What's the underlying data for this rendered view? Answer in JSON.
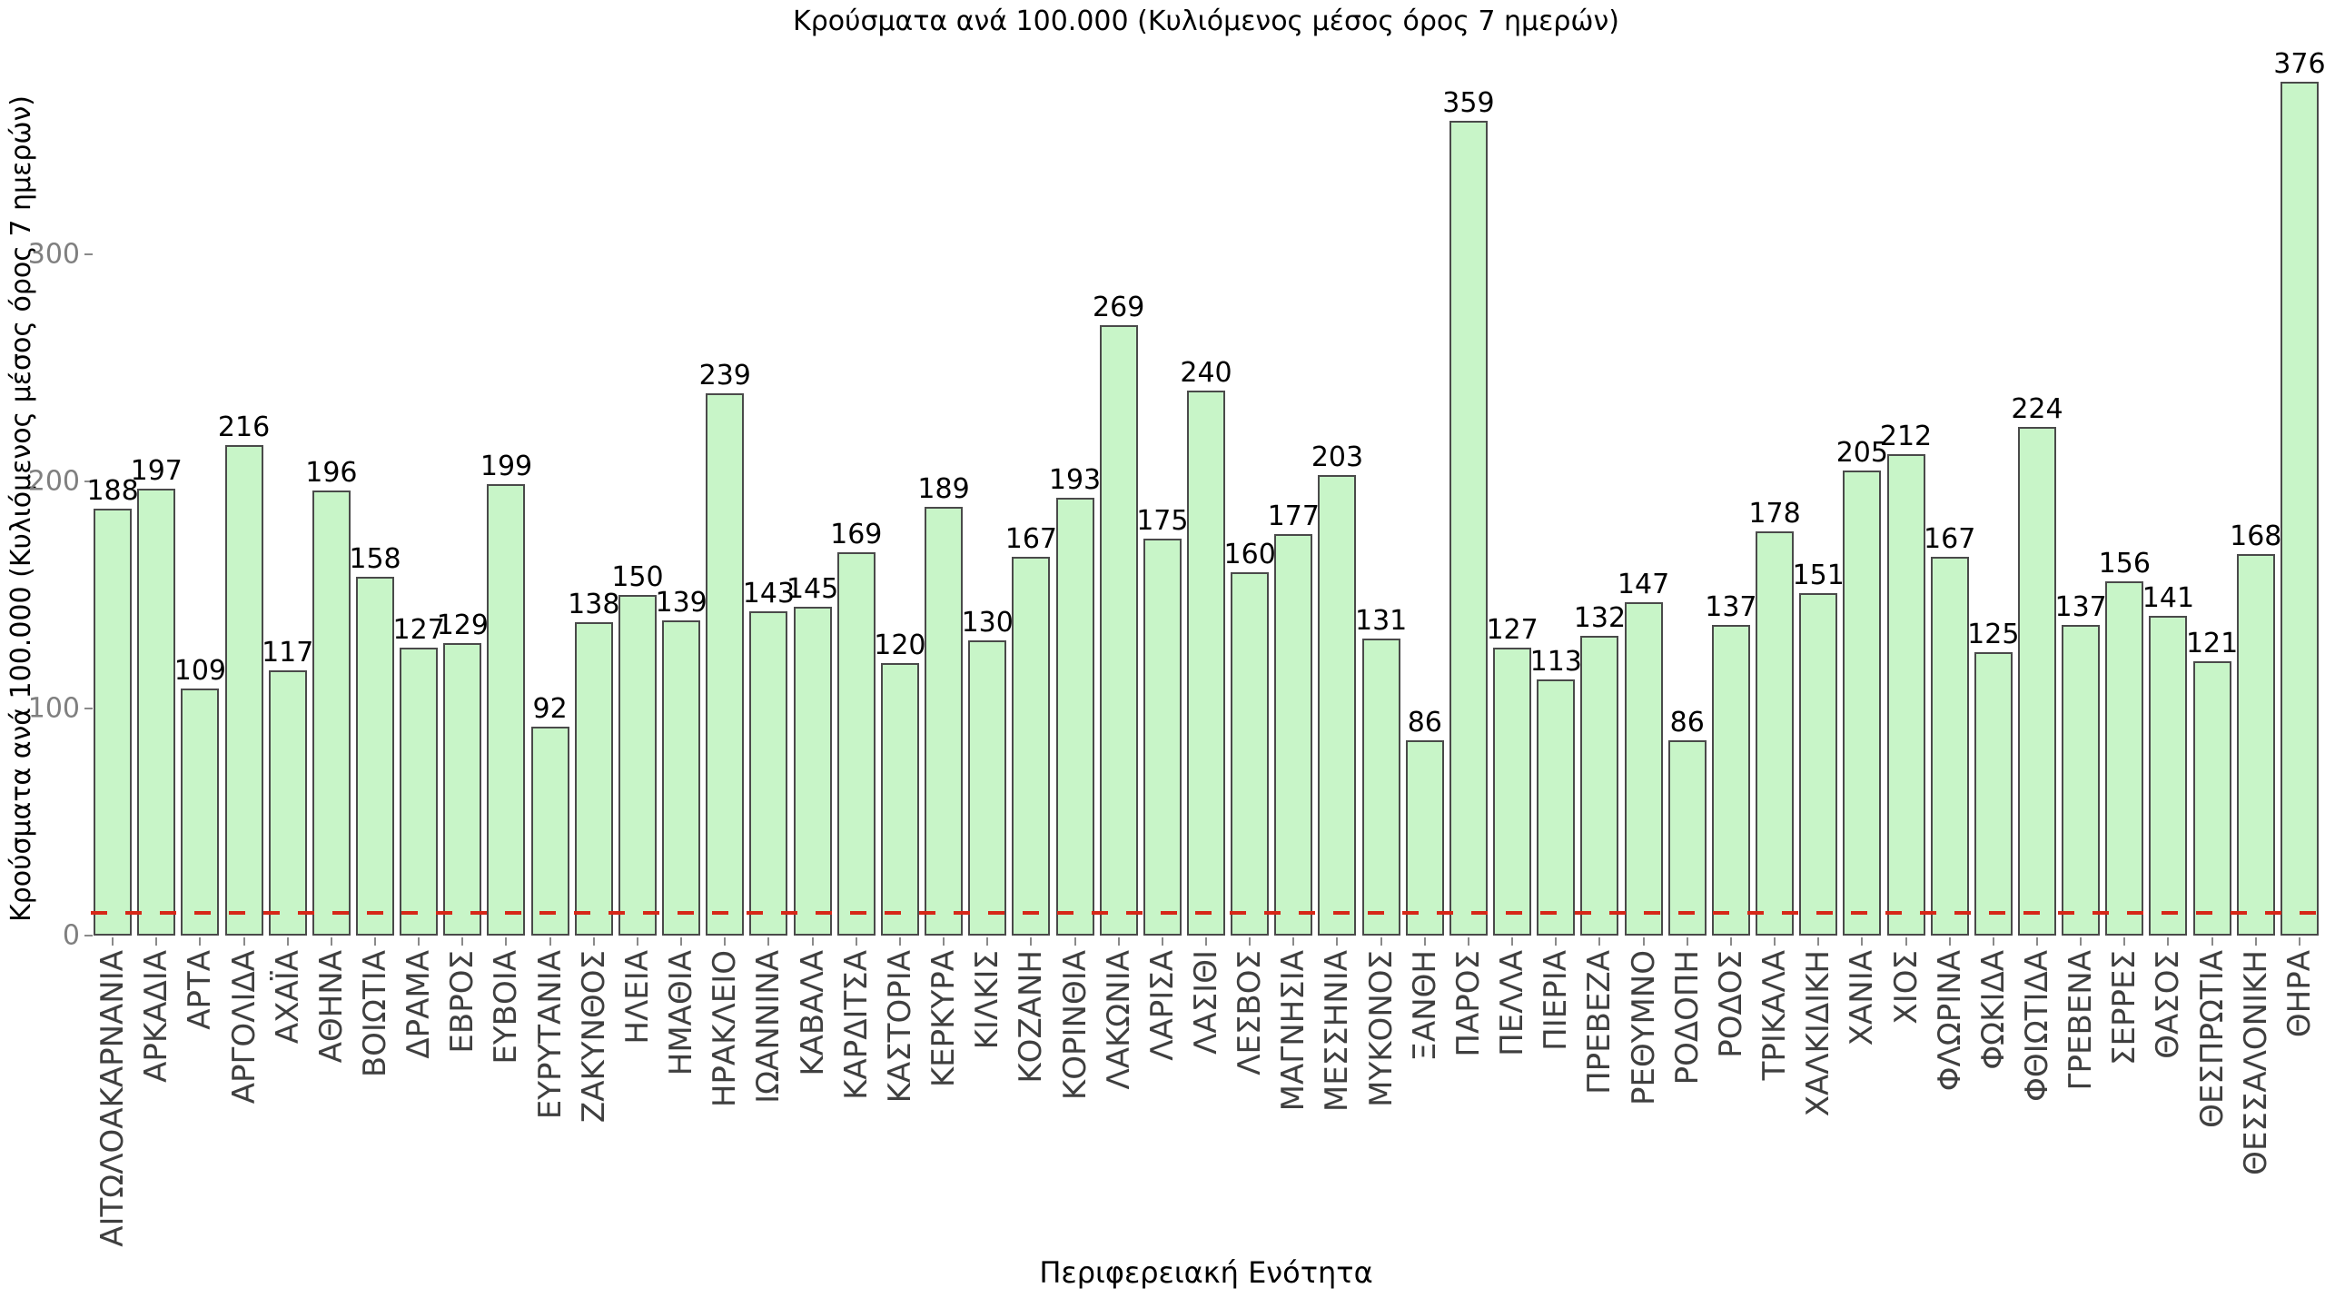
{
  "chart_data": {
    "type": "bar",
    "title": "Κρούσματα ανά 100.000 (Κυλιόμενος μέσος όρος 7 ημερών)",
    "xlabel": "Περιφερειακή Ενότητα",
    "ylabel": "Κρούσματα ανά 100.000 (Κυλιόμενος μέσος όρος 7 ημερών)",
    "yticks": [
      0,
      100,
      200,
      300
    ],
    "ylim": [
      0,
      412
    ],
    "grid": false,
    "legend": "none",
    "bar_fill_color": "#c8f5c8",
    "bar_border_color": "#4a4a4a",
    "value_label_color": "#000000",
    "threshold_line": {
      "value": 10,
      "color": "#d62718",
      "style": "dashed"
    },
    "categories": [
      "ΑΙΤΩΛΟΑΚΑΡΝΑΝΙΑ",
      "ΑΡΚΑΔΙΑ",
      "ΑΡΤΑ",
      "ΑΡΓΟΛΙΔΑ",
      "ΑΧΑΪΑ",
      "ΑΘΗΝΑ",
      "ΒΟΙΩΤΙΑ",
      "ΔΡΑΜΑ",
      "ΕΒΡΟΣ",
      "ΕΥΒΟΙΑ",
      "ΕΥΡΥΤΑΝΙΑ",
      "ΖΑΚΥΝΘΟΣ",
      "ΗΛΕΙΑ",
      "ΗΜΑΘΙΑ",
      "ΗΡΑΚΛΕΙΟ",
      "ΙΩΑΝΝΙΝΑ",
      "ΚΑΒΑΛΑ",
      "ΚΑΡΔΙΤΣΑ",
      "ΚΑΣΤΟΡΙΑ",
      "ΚΕΡΚΥΡΑ",
      "ΚΙΛΚΙΣ",
      "ΚΟΖΑΝΗ",
      "ΚΟΡΙΝΘΙΑ",
      "ΛΑΚΩΝΙΑ",
      "ΛΑΡΙΣΑ",
      "ΛΑΣΙΘΙ",
      "ΛΕΣΒΟΣ",
      "ΜΑΓΝΗΣΙΑ",
      "ΜΕΣΣΗΝΙΑ",
      "ΜΥΚΟΝΟΣ",
      "ΞΑΝΘΗ",
      "ΠΑΡΟΣ",
      "ΠΕΛΛΑ",
      "ΠΙΕΡΙΑ",
      "ΠΡΕΒΕΖΑ",
      "ΡΕΘΥΜΝΟ",
      "ΡΟΔΟΠΗ",
      "ΡΟΔΟΣ",
      "ΤΡΙΚΑΛΑ",
      "ΧΑΛΚΙΔΙΚΗ",
      "ΧΑΝΙΑ",
      "ΧΙΟΣ",
      "ΦΛΩΡΙΝΑ",
      "ΦΩΚΙΔΑ",
      "ΦΘΙΩΤΙΔΑ",
      "ΓΡΕΒΕΝΑ",
      "ΣΕΡΡΕΣ",
      "ΘΑΣΟΣ",
      "ΘΕΣΠΡΩΤΙΑ",
      "ΘΕΣΣΑΛΟΝΙΚΗ",
      "ΘΗΡΑ"
    ],
    "values": [
      188,
      197,
      109,
      216,
      117,
      196,
      158,
      127,
      129,
      199,
      92,
      138,
      150,
      139,
      239,
      143,
      145,
      169,
      120,
      189,
      130,
      167,
      193,
      269,
      175,
      240,
      160,
      177,
      203,
      131,
      86,
      359,
      127,
      113,
      132,
      147,
      86,
      137,
      178,
      151,
      205,
      212,
      167,
      125,
      224,
      137,
      156,
      141,
      121,
      168,
      376
    ]
  }
}
